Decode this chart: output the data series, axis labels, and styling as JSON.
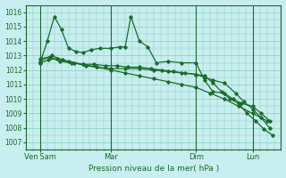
{
  "xlabel": "Pression niveau de la mer( hPa )",
  "bg_color": "#c8eef0",
  "grid_color": "#88ccbb",
  "line_color": "#1a6b2a",
  "ylim": [
    1006.5,
    1016.5
  ],
  "yticks": [
    1007,
    1008,
    1009,
    1010,
    1011,
    1012,
    1013,
    1014,
    1015,
    1016
  ],
  "xlim": [
    0,
    9.0
  ],
  "xtick_positions": [
    0.5,
    3.0,
    6.0,
    8.0
  ],
  "xtick_labels": [
    "Ven Sam",
    "Mar",
    "Dim",
    "Lun"
  ],
  "vlines": [
    0.5,
    3.0,
    6.0,
    8.0
  ],
  "series1_x": [
    0.5,
    0.8,
    1.1,
    1.5,
    2.0,
    2.5,
    3.0,
    3.5,
    4.0,
    4.5,
    5.0,
    5.5,
    6.0,
    6.5,
    7.0,
    7.5,
    8.0,
    8.5
  ],
  "series1_y": [
    1012.5,
    1012.7,
    1012.8,
    1012.6,
    1012.4,
    1012.2,
    1012.0,
    1011.8,
    1011.6,
    1011.4,
    1011.2,
    1011.0,
    1010.8,
    1010.4,
    1010.0,
    1009.5,
    1009.0,
    1008.5
  ],
  "series2_x": [
    0.5,
    0.75,
    1.0,
    1.25,
    1.5,
    1.75,
    2.0,
    2.3,
    2.6,
    3.0,
    3.3,
    3.5,
    3.7,
    4.0,
    4.3,
    4.6,
    5.0,
    5.5,
    6.0,
    6.3,
    6.6,
    7.0,
    7.3,
    7.6,
    8.0,
    8.3,
    8.6
  ],
  "series2_y": [
    1012.5,
    1014.0,
    1015.7,
    1014.8,
    1013.5,
    1013.3,
    1013.2,
    1013.4,
    1013.5,
    1013.5,
    1013.6,
    1013.6,
    1015.7,
    1014.0,
    1013.6,
    1012.5,
    1012.6,
    1012.5,
    1012.5,
    1011.3,
    1010.5,
    1010.4,
    1010.0,
    1009.7,
    1009.5,
    1009.0,
    1008.5
  ],
  "series3_x": [
    0.5,
    0.9,
    1.3,
    1.7,
    2.1,
    2.5,
    3.0,
    3.5,
    4.0,
    4.5,
    5.0,
    5.5,
    6.0,
    6.3,
    6.6,
    7.0,
    7.4,
    7.7,
    8.0,
    8.3,
    8.6
  ],
  "series3_y": [
    1012.6,
    1013.0,
    1012.7,
    1012.5,
    1012.3,
    1012.2,
    1012.1,
    1012.1,
    1012.1,
    1012.0,
    1011.9,
    1011.8,
    1011.7,
    1011.5,
    1011.3,
    1011.1,
    1010.4,
    1009.8,
    1009.3,
    1008.7,
    1008.0
  ],
  "series4_x": [
    0.5,
    0.85,
    1.2,
    1.6,
    2.0,
    2.4,
    2.8,
    3.2,
    3.6,
    4.0,
    4.4,
    4.8,
    5.2,
    5.6,
    6.0,
    6.3,
    6.6,
    6.9,
    7.2,
    7.5,
    7.8,
    8.1,
    8.4,
    8.7
  ],
  "series4_y": [
    1012.8,
    1012.9,
    1012.6,
    1012.5,
    1012.4,
    1012.4,
    1012.3,
    1012.3,
    1012.2,
    1012.2,
    1012.1,
    1012.0,
    1011.9,
    1011.8,
    1011.7,
    1011.6,
    1011.1,
    1010.5,
    1010.0,
    1009.7,
    1009.0,
    1008.5,
    1007.9,
    1007.5
  ],
  "marker": "D",
  "markersize": 1.8,
  "linewidth": 0.9
}
